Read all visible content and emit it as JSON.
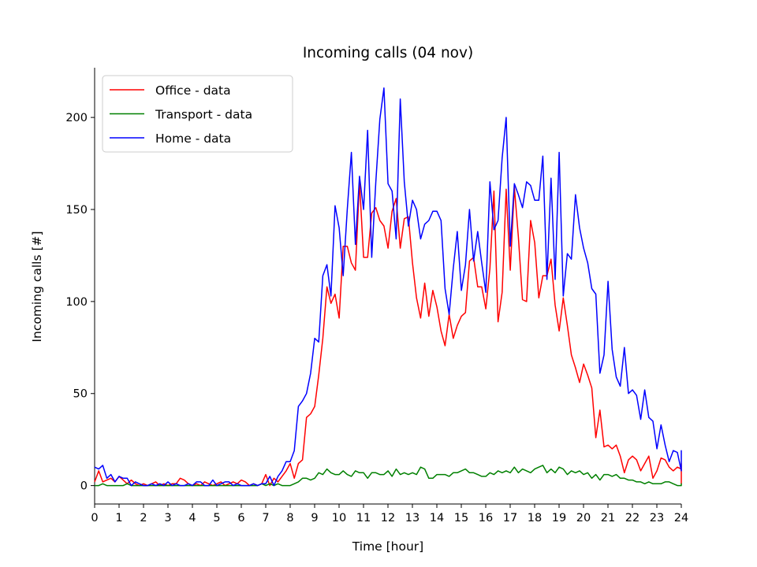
{
  "chart_data": {
    "type": "line",
    "title": "Incoming calls (04 nov)",
    "xlabel": "Time [hour]",
    "ylabel": "Incoming calls [#]",
    "xlim": [
      0,
      24
    ],
    "ylim": [
      -10,
      227
    ],
    "x_ticks": [
      0,
      1,
      2,
      3,
      4,
      5,
      6,
      7,
      8,
      9,
      10,
      11,
      12,
      13,
      14,
      15,
      16,
      17,
      18,
      19,
      20,
      21,
      22,
      23,
      24
    ],
    "y_ticks": [
      0,
      50,
      100,
      150,
      200
    ],
    "grid": false,
    "legend_position": "top-left",
    "x_step": 0.1667,
    "series": [
      {
        "name": "Office - data",
        "color": "#ff0000",
        "values": [
          2,
          8,
          2,
          3,
          4,
          2,
          5,
          3,
          1,
          3,
          1,
          0,
          1,
          0,
          1,
          2,
          0,
          1,
          0,
          1,
          1,
          4,
          3,
          1,
          0,
          1,
          0,
          2,
          1,
          0,
          1,
          2,
          0,
          1,
          2,
          1,
          3,
          2,
          0,
          1,
          0,
          1,
          6,
          0,
          4,
          2,
          5,
          8,
          12,
          4,
          12,
          14,
          37,
          39,
          43,
          60,
          80,
          108,
          99,
          104,
          91,
          130,
          130,
          121,
          117,
          165,
          124,
          124,
          148,
          151,
          144,
          141,
          129,
          149,
          156,
          129,
          145,
          146,
          121,
          102,
          91,
          110,
          92,
          106,
          97,
          84,
          76,
          93,
          80,
          87,
          92,
          94,
          122,
          124,
          108,
          108,
          96,
          118,
          160,
          89,
          105,
          161,
          117,
          162,
          135,
          101,
          100,
          144,
          132,
          102,
          114,
          114,
          123,
          98,
          84,
          102,
          87,
          71,
          64,
          56,
          66,
          60,
          53,
          26,
          41,
          21,
          22,
          20,
          22,
          16,
          7,
          14,
          16,
          14,
          8,
          12,
          16,
          4,
          8,
          15,
          14,
          10,
          8,
          10,
          9,
          12,
          1,
          2,
          10,
          9,
          8
        ],
        "shown_values": [
          165,
          161,
          162,
          160,
          144,
          26,
          41
        ]
      },
      {
        "name": "Transport - data",
        "color": "#008000",
        "values": [
          0,
          0,
          1,
          0,
          0,
          0,
          0,
          0,
          1,
          0,
          0,
          0,
          0,
          0,
          0,
          0,
          0,
          0,
          0,
          0,
          0,
          0,
          0,
          0,
          0,
          0,
          0,
          0,
          0,
          0,
          0,
          0,
          0,
          0,
          0,
          0,
          0,
          0,
          0,
          0,
          0,
          1,
          0,
          1,
          0,
          1,
          0,
          0,
          0,
          1,
          2,
          4,
          4,
          3,
          4,
          7,
          6,
          9,
          7,
          6,
          6,
          8,
          6,
          5,
          8,
          7,
          7,
          4,
          7,
          7,
          6,
          6,
          8,
          5,
          9,
          6,
          7,
          6,
          7,
          6,
          10,
          9,
          4,
          4,
          6,
          6,
          6,
          5,
          7,
          7,
          8,
          9,
          7,
          7,
          6,
          5,
          5,
          7,
          6,
          8,
          7,
          8,
          7,
          10,
          7,
          9,
          8,
          7,
          9,
          10,
          11,
          7,
          9,
          7,
          10,
          9,
          6,
          8,
          7,
          8,
          6,
          7,
          4,
          6,
          3,
          6,
          6,
          5,
          6,
          4,
          4,
          3,
          3,
          2,
          2,
          1,
          2,
          1,
          1,
          1,
          2,
          2,
          1,
          0,
          0,
          1,
          1,
          0,
          1,
          0,
          0
        ],
        "shown_values": [
          10,
          11,
          9
        ]
      },
      {
        "name": "Home - data",
        "color": "#0000ff",
        "values": [
          10,
          9,
          11,
          4,
          6,
          2,
          5,
          4,
          4,
          0,
          2,
          1,
          0,
          0,
          1,
          0,
          1,
          0,
          2,
          0,
          1,
          0,
          0,
          1,
          0,
          2,
          2,
          0,
          0,
          3,
          0,
          1,
          2,
          2,
          0,
          1,
          0,
          0,
          0,
          1,
          0,
          1,
          1,
          5,
          0,
          5,
          8,
          13,
          13,
          19,
          43,
          46,
          50,
          61,
          80,
          78,
          114,
          120,
          103,
          152,
          140,
          114,
          150,
          181,
          131,
          168,
          150,
          193,
          124,
          165,
          199,
          216,
          164,
          160,
          134,
          210,
          165,
          141,
          155,
          150,
          134,
          142,
          144,
          149,
          149,
          144,
          107,
          93,
          118,
          138,
          106,
          120,
          150,
          122,
          138,
          121,
          105,
          165,
          139,
          144,
          178,
          200,
          130,
          164,
          158,
          151,
          165,
          163,
          155,
          155,
          179,
          112,
          167,
          112,
          181,
          103,
          126,
          123,
          158,
          140,
          129,
          121,
          107,
          104,
          61,
          71,
          111,
          74,
          59,
          54,
          75,
          50,
          52,
          49,
          36,
          52,
          37,
          35,
          20,
          33,
          22,
          13,
          19,
          18,
          8,
          19,
          10,
          10,
          11
        ],
        "shown_values": [
          216,
          210,
          200,
          193,
          181,
          181,
          179,
          178
        ]
      }
    ]
  }
}
